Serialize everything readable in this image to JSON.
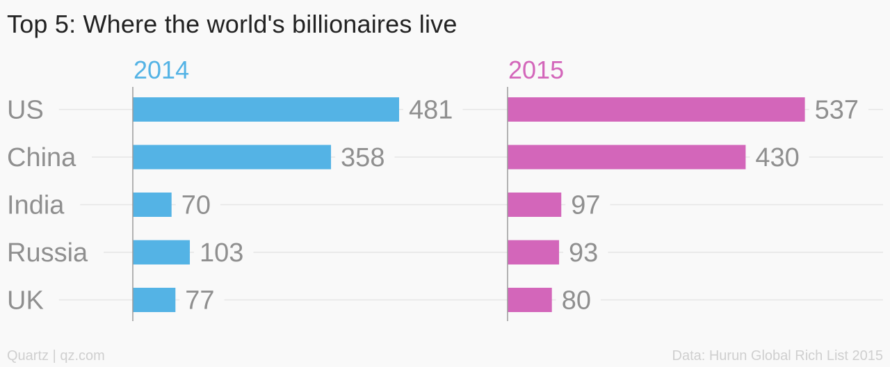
{
  "title": "Top 5: Where the world's billionaires live",
  "footer": {
    "credit": "Quartz | qz.com",
    "source": "Data: Hurun Global Rich List 2015"
  },
  "colors": {
    "2014": "#54b3e5",
    "2015": "#d366ba",
    "label": "#8f8f8f",
    "grid": "#e6e6e6",
    "axis": "#9a9a9a"
  },
  "chart_data": {
    "type": "bar",
    "orientation": "horizontal",
    "title": "Top 5: Where the world's billionaires live",
    "categories": [
      "US",
      "China",
      "India",
      "Russia",
      "UK"
    ],
    "series": [
      {
        "name": "2014",
        "values": [
          481,
          358,
          70,
          103,
          77
        ]
      },
      {
        "name": "2015",
        "values": [
          537,
          430,
          97,
          93,
          80
        ]
      }
    ],
    "grid": true,
    "legend": "panel titles above each panel"
  }
}
